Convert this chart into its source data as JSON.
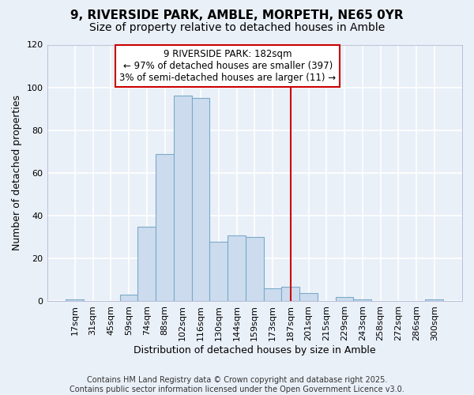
{
  "title1": "9, RIVERSIDE PARK, AMBLE, MORPETH, NE65 0YR",
  "title2": "Size of property relative to detached houses in Amble",
  "xlabel": "Distribution of detached houses by size in Amble",
  "ylabel": "Number of detached properties",
  "bar_labels": [
    "17sqm",
    "31sqm",
    "45sqm",
    "59sqm",
    "74sqm",
    "88sqm",
    "102sqm",
    "116sqm",
    "130sqm",
    "144sqm",
    "159sqm",
    "173sqm",
    "187sqm",
    "201sqm",
    "215sqm",
    "229sqm",
    "243sqm",
    "258sqm",
    "272sqm",
    "286sqm",
    "300sqm"
  ],
  "bar_values": [
    1,
    0,
    0,
    3,
    35,
    69,
    96,
    95,
    28,
    31,
    30,
    6,
    7,
    4,
    0,
    2,
    1,
    0,
    0,
    0,
    1
  ],
  "bar_color": "#ccdcee",
  "bar_edge_color": "#7aaac8",
  "bg_color": "#eaf0f8",
  "grid_color": "#ffffff",
  "red_line_index": 12,
  "annotation_text": "9 RIVERSIDE PARK: 182sqm\n← 97% of detached houses are smaller (397)\n3% of semi-detached houses are larger (11) →",
  "annotation_box_facecolor": "#ffffff",
  "annotation_box_edgecolor": "#cc0000",
  "ylim": [
    0,
    120
  ],
  "yticks": [
    0,
    20,
    40,
    60,
    80,
    100,
    120
  ],
  "footer": "Contains HM Land Registry data © Crown copyright and database right 2025.\nContains public sector information licensed under the Open Government Licence v3.0.",
  "title1_fontsize": 11,
  "title2_fontsize": 10,
  "xlabel_fontsize": 9,
  "ylabel_fontsize": 9,
  "tick_fontsize": 8,
  "annot_fontsize": 8.5,
  "footer_fontsize": 7
}
